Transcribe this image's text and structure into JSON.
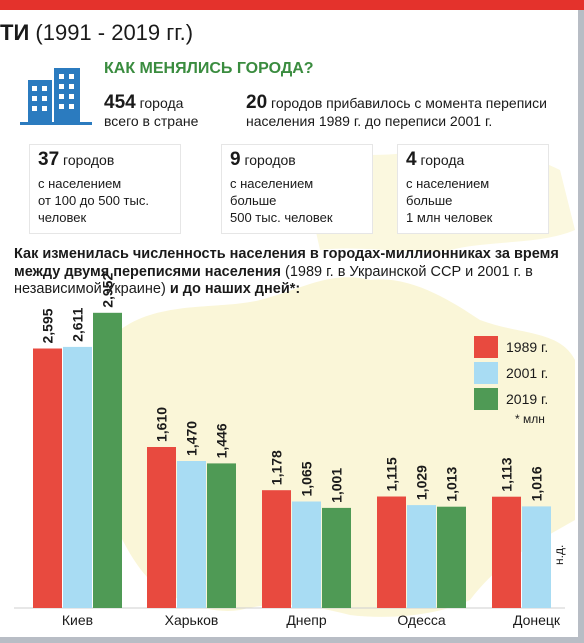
{
  "header": {
    "title_bold": "ТИ",
    "title_rest": "(1991 - 2019 гг.)",
    "subhead": "КАК МЕНЯЛИСЬ ГОРОДА?"
  },
  "stats": {
    "total_number": "454",
    "total_text_1": "города",
    "total_text_2": "всего в стране",
    "added_number": "20",
    "added_text": "городов прибавилось с момента переписи населения 1989 г. до переписи 2001 г."
  },
  "boxes": [
    {
      "number": "37",
      "unit": "городов",
      "lines": [
        "с населением",
        "от 100 до 500 тыс.",
        "человек"
      ]
    },
    {
      "number": "9",
      "unit": "городов",
      "lines": [
        "с населением",
        "больше",
        "500 тыс. человек"
      ]
    },
    {
      "number": "4",
      "unit": "города",
      "lines": [
        "с населением",
        "больше",
        "1 млн человек"
      ]
    }
  ],
  "question": {
    "bold_1": "Как изменилась численность населения в городах-миллионниках за время между двумя переписями населения",
    "normal": " (1989 г. в Украинской ССР и 2001 г. в независимой Украине) ",
    "bold_2": "и до наших дней*:"
  },
  "colors": {
    "red": "#e84a3f",
    "blue": "#a8dcf3",
    "green": "#4f9a55",
    "accent_green": "#3a8c3f",
    "top_bar": "#e4322c"
  },
  "chart_data": {
    "type": "bar",
    "categories": [
      "Киев",
      "Харьков",
      "Днепр",
      "Одесса",
      "Донецк"
    ],
    "series": [
      {
        "name": "1989 г.",
        "color": "#e84a3f",
        "values": [
          2.595,
          1.61,
          1.178,
          1.115,
          1.113
        ],
        "labels": [
          "2,595",
          "1,610",
          "1,178",
          "1,115",
          "1,113"
        ]
      },
      {
        "name": "2001 г.",
        "color": "#a8dcf3",
        "values": [
          2.611,
          1.47,
          1.065,
          1.029,
          1.016
        ],
        "labels": [
          "2,611",
          "1,470",
          "1,065",
          "1,029",
          "1,016"
        ]
      },
      {
        "name": "2019 г.",
        "color": "#4f9a55",
        "values": [
          2.952,
          1.446,
          1.001,
          1.013,
          null
        ],
        "labels": [
          "2,952",
          "1,446",
          "1,001",
          "1,013",
          ""
        ]
      }
    ],
    "unit_note": "* млн",
    "missing_note": "н.д."
  }
}
